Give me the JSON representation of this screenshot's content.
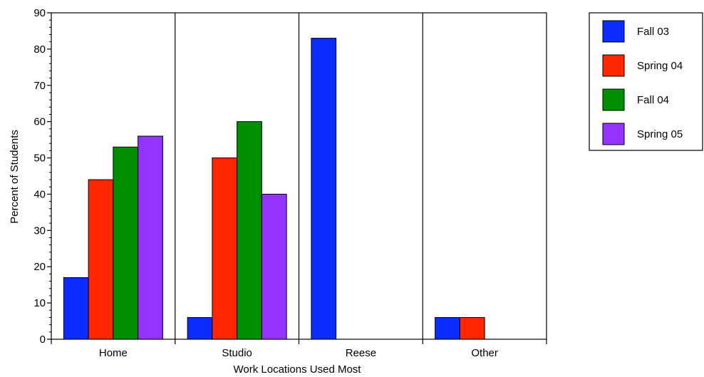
{
  "chart_data": {
    "type": "bar",
    "xlabel": "Work Locations Used Most",
    "ylabel": "Percent of Students",
    "ylim": [
      0,
      90
    ],
    "yticks": [
      0,
      10,
      20,
      30,
      40,
      50,
      60,
      70,
      80,
      90
    ],
    "categories": [
      "Home",
      "Studio",
      "Reese",
      "Other"
    ],
    "series": [
      {
        "name": "Fall 03",
        "color": "#0a2cff",
        "values": [
          17,
          6,
          83,
          6
        ]
      },
      {
        "name": "Spring 04",
        "color": "#ff2600",
        "values": [
          44,
          50,
          0,
          6
        ]
      },
      {
        "name": "Fall 04",
        "color": "#008f00",
        "values": [
          53,
          60,
          0,
          0
        ]
      },
      {
        "name": "Spring 05",
        "color": "#9233ff",
        "values": [
          56,
          40,
          0,
          0
        ]
      }
    ],
    "grid": false,
    "category_separators": true,
    "legend_position": "top-right"
  }
}
